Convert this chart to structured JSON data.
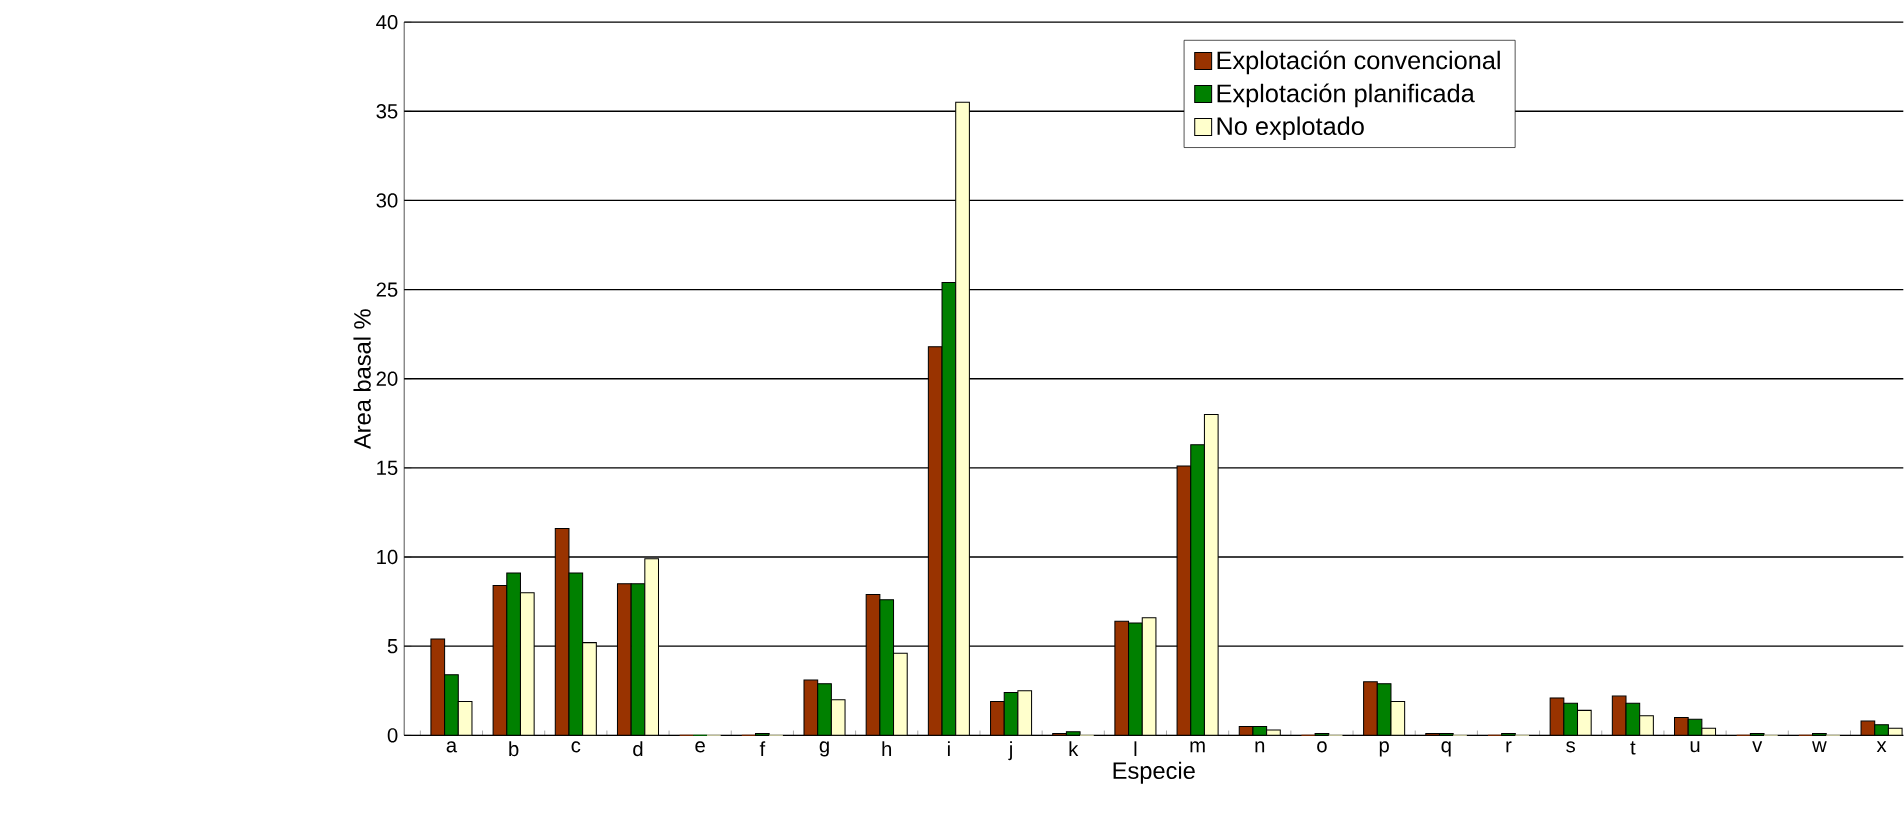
{
  "chart_data": {
    "type": "bar",
    "xlabel": "Especie",
    "ylabel": "Area basal %",
    "categories": [
      "a",
      "b",
      "c",
      "d",
      "e",
      "f",
      "g",
      "h",
      "i",
      "j",
      "k",
      "l",
      "m",
      "n",
      "o",
      "p",
      "q",
      "r",
      "s",
      "t",
      "u",
      "v",
      "w",
      "x"
    ],
    "series": [
      {
        "name": "Explotación convencional",
        "color": "#993300",
        "values": [
          5.4,
          8.4,
          11.6,
          8.5,
          0,
          0,
          3.1,
          7.9,
          21.8,
          1.9,
          0.1,
          6.4,
          15.1,
          0.5,
          0,
          3.0,
          0.1,
          0,
          2.1,
          2.2,
          1.0,
          0,
          0,
          0.8
        ]
      },
      {
        "name": "Explotación planificada",
        "color": "#008000",
        "values": [
          3.4,
          9.1,
          9.1,
          8.5,
          0,
          0.1,
          2.9,
          7.6,
          25.4,
          2.4,
          0.2,
          6.3,
          16.3,
          0.5,
          0.1,
          2.9,
          0.1,
          0.1,
          1.8,
          1.8,
          0.9,
          0.1,
          0.1,
          0.6
        ]
      },
      {
        "name": "No explotado",
        "color": "#ffffcc",
        "values": [
          1.9,
          8.0,
          5.2,
          9.9,
          0,
          0,
          2.0,
          4.6,
          35.5,
          2.5,
          0,
          6.6,
          18.0,
          0.3,
          0,
          1.9,
          0,
          0,
          1.4,
          1.1,
          0.4,
          0,
          0,
          0.4
        ]
      }
    ],
    "ylim": [
      0,
      40
    ],
    "yticks": [
      0,
      5,
      10,
      15,
      20,
      25,
      30,
      35,
      40
    ],
    "grid": "y",
    "legend": "top right"
  }
}
